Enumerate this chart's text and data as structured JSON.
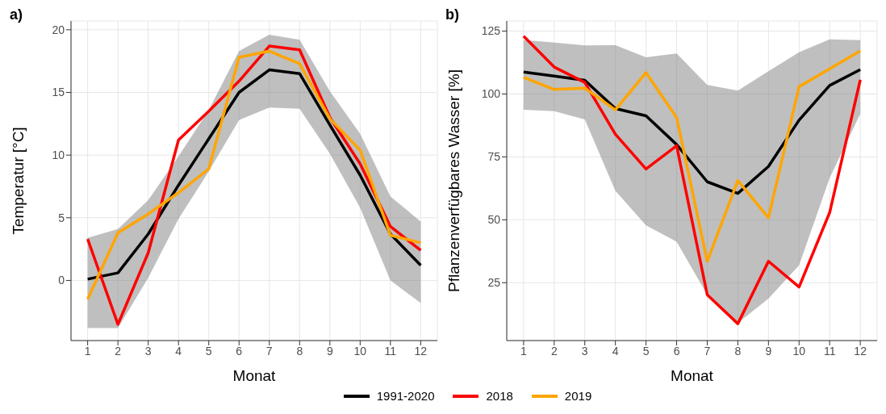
{
  "chart_data": [
    {
      "type": "line",
      "title": "a)",
      "xlabel": "Monat",
      "ylabel": "Temperatur [°C]",
      "x": [
        1,
        2,
        3,
        4,
        5,
        6,
        7,
        8,
        9,
        10,
        11,
        12
      ],
      "xlim": [
        0.45,
        12.55
      ],
      "xticks": [
        1,
        2,
        3,
        4,
        5,
        6,
        7,
        8,
        9,
        10,
        11,
        12
      ],
      "ylim": [
        -4.8,
        20.7
      ],
      "yticks": [
        0,
        5,
        10,
        15,
        20
      ],
      "grid": true,
      "legend": "bottom",
      "line_style": "solid",
      "series": [
        {
          "name": "1991-2020",
          "color": "#000000",
          "values": [
            0.1,
            0.6,
            3.7,
            7.6,
            11.3,
            15.0,
            16.8,
            16.5,
            12.4,
            8.4,
            3.7,
            1.2
          ],
          "lower": [
            -3.8,
            -3.8,
            0.2,
            4.9,
            8.7,
            12.8,
            13.8,
            13.7,
            10.1,
            5.8,
            0.0,
            -1.8
          ],
          "upper": [
            3.4,
            4.1,
            6.4,
            9.9,
            13.6,
            18.3,
            19.6,
            19.2,
            15.1,
            11.7,
            6.7,
            4.7
          ]
        },
        {
          "name": "2018",
          "color": "#ff0000",
          "values": [
            3.3,
            -3.5,
            2.2,
            11.2,
            13.5,
            15.9,
            18.7,
            18.4,
            13.0,
            9.3,
            4.3,
            2.4
          ]
        },
        {
          "name": "2019",
          "color": "#ffa500",
          "values": [
            -1.5,
            3.8,
            5.3,
            7.0,
            8.9,
            17.8,
            18.3,
            17.3,
            12.9,
            10.4,
            3.6,
            3.0
          ]
        }
      ]
    },
    {
      "type": "line",
      "title": "b)",
      "xlabel": "Monat",
      "ylabel": "Pflanzenverfügbares Wasser [%]",
      "x": [
        1,
        2,
        3,
        4,
        5,
        6,
        7,
        8,
        9,
        10,
        11,
        12
      ],
      "xlim": [
        0.45,
        12.55
      ],
      "xticks": [
        1,
        2,
        3,
        4,
        5,
        6,
        7,
        8,
        9,
        10,
        11,
        12
      ],
      "ylim": [
        2,
        129
      ],
      "yticks": [
        25,
        50,
        75,
        100,
        125
      ],
      "grid": true,
      "line_style": "solid",
      "series": [
        {
          "color": "#000000",
          "values": [
            108.7,
            107.1,
            105.4,
            94.2,
            91.3,
            79.9,
            65.1,
            60.5,
            71.2,
            89.6,
            103.4,
            109.7
          ],
          "lower": [
            93.7,
            93.2,
            89.9,
            61.5,
            47.8,
            41.3,
            20.2,
            9,
            18.7,
            31.9,
            66.6,
            92.1
          ],
          "upper": [
            121.5,
            120.4,
            119.3,
            119.4,
            114.6,
            116.1,
            103.6,
            101.3,
            109,
            116.6,
            121.7,
            121.4
          ]
        },
        {
          "color": "#ff0000",
          "values": [
            123,
            110.7,
            104.6,
            84,
            70.2,
            79.4,
            20.2,
            8.7,
            33.5,
            23.3,
            52.9,
            105.6
          ]
        },
        {
          "color": "#ffa500",
          "values": [
            106.6,
            101.8,
            102.3,
            93.7,
            108.5,
            90.6,
            33.5,
            65.6,
            50.8,
            102.9,
            110,
            117.1
          ]
        }
      ]
    }
  ]
}
